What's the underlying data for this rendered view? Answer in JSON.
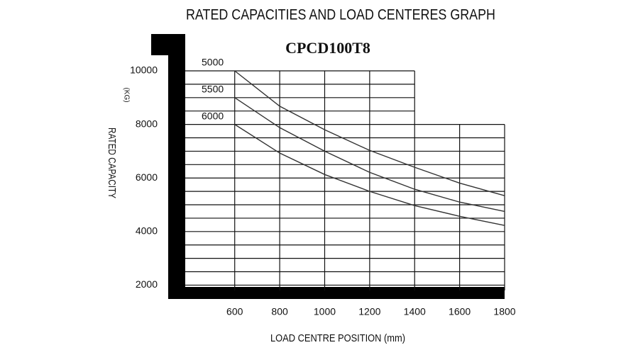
{
  "chart_data": {
    "type": "line",
    "title": "RATED CAPACITIES AND LOAD CENTERES GRAPH",
    "subtitle": "CPCD100T8",
    "x_label": "LOAD CENTRE POSITION (mm)",
    "y_label": "RATED CAPACITY",
    "y_unit": "(KG)",
    "x": [
      600,
      800,
      1000,
      1200,
      1400,
      1600,
      1800
    ],
    "series": [
      {
        "name": "5000",
        "color": "#333333",
        "values": [
          10000,
          8680,
          7800,
          7030,
          6400,
          5810,
          5340
        ]
      },
      {
        "name": "5500",
        "color": "#333333",
        "values": [
          9000,
          7880,
          7000,
          6210,
          5580,
          5100,
          4750
        ]
      },
      {
        "name": "6000",
        "color": "#333333",
        "values": [
          8000,
          6930,
          6130,
          5500,
          4970,
          4570,
          4230
        ]
      }
    ],
    "xlim": [
      380,
      1800
    ],
    "ylim": [
      1800,
      10000
    ],
    "xticks": [
      600,
      800,
      1000,
      1200,
      1400,
      1600,
      1800
    ],
    "yticks": [
      2000,
      4000,
      6000,
      8000,
      10000
    ],
    "yminor_ticks": [
      2000,
      2500,
      3000,
      3500,
      4000,
      4500,
      5000,
      5500,
      6000,
      6500,
      7000,
      7500,
      8000,
      8500,
      9000,
      9500,
      10000
    ],
    "grid": true
  }
}
